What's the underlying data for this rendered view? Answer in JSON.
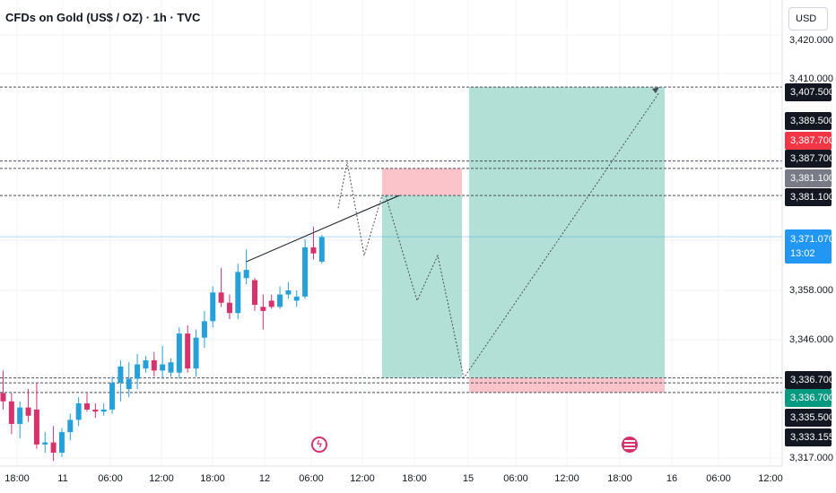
{
  "header": {
    "title": "CFDs on Gold (US$ / OZ) · 1h · TVC",
    "currency": "USD"
  },
  "price_axis": {
    "ticks": [
      "3,420.000",
      "3,410.000",
      "3,358.000",
      "3,346.000",
      "3,317.000"
    ]
  },
  "time_axis": {
    "ticks": [
      "18:00",
      "11",
      "06:00",
      "12:00",
      "18:00",
      "12",
      "06:00",
      "12:00",
      "18:00",
      "15",
      "06:00",
      "12:00",
      "18:00",
      "16",
      "06:00",
      "12:00"
    ]
  },
  "badges": [
    {
      "text": "3,407.500",
      "kind": "dark"
    },
    {
      "text": "3,389.500",
      "kind": "dark"
    },
    {
      "text": "3,387.700",
      "kind": "red"
    },
    {
      "text": "3,387.700",
      "kind": "dark"
    },
    {
      "text": "3,381.100",
      "kind": "gray"
    },
    {
      "text": "3,381.100",
      "kind": "dark"
    },
    {
      "text": "3,371.070",
      "sub": "13:02",
      "kind": "blue"
    },
    {
      "text": "3,336.700",
      "kind": "dark"
    },
    {
      "text": "3,336.700",
      "kind": "green"
    },
    {
      "text": "3,335.500",
      "kind": "dark"
    },
    {
      "text": "3,333.155",
      "kind": "dark"
    }
  ],
  "colors": {
    "up": "#26a0d8",
    "down": "#d6336c",
    "profit_zone": "#b2dfd6",
    "loss_zone": "#fbc4cb",
    "last_price_line": "#2196f3"
  },
  "events": [
    {
      "icon": "flash-icon"
    },
    {
      "icon": "us-flag-icon"
    }
  ],
  "chart_data": {
    "type": "candlestick",
    "title": "CFDs on Gold (US$ / OZ) · 1h · TVC",
    "y_unit": "USD",
    "ylim": [
      3317,
      3424
    ],
    "last_price": 3371.07,
    "candles": [
      {
        "o": 3333.0,
        "h": 3338.5,
        "l": 3329.0,
        "c": 3331.0
      },
      {
        "o": 3331.0,
        "h": 3333.0,
        "l": 3323.0,
        "c": 3325.5
      },
      {
        "o": 3325.5,
        "h": 3331.0,
        "l": 3322.0,
        "c": 3329.5
      },
      {
        "o": 3329.5,
        "h": 3334.0,
        "l": 3326.0,
        "c": 3327.5
      },
      {
        "o": 3329.0,
        "h": 3335.5,
        "l": 3319.5,
        "c": 3320.5
      },
      {
        "o": 3320.5,
        "h": 3323.5,
        "l": 3318.5,
        "c": 3321.0
      },
      {
        "o": 3321.0,
        "h": 3325.0,
        "l": 3316.5,
        "c": 3318.5
      },
      {
        "o": 3318.5,
        "h": 3324.5,
        "l": 3317.5,
        "c": 3323.5
      },
      {
        "o": 3323.5,
        "h": 3328.0,
        "l": 3321.5,
        "c": 3326.5
      },
      {
        "o": 3326.5,
        "h": 3332.0,
        "l": 3325.0,
        "c": 3330.5
      },
      {
        "o": 3330.5,
        "h": 3333.0,
        "l": 3328.5,
        "c": 3329.0
      },
      {
        "o": 3329.0,
        "h": 3330.5,
        "l": 3327.0,
        "c": 3328.5
      },
      {
        "o": 3328.5,
        "h": 3330.5,
        "l": 3327.5,
        "c": 3329.0
      },
      {
        "o": 3329.0,
        "h": 3337.0,
        "l": 3328.0,
        "c": 3335.5
      },
      {
        "o": 3335.5,
        "h": 3341.0,
        "l": 3331.0,
        "c": 3339.5
      },
      {
        "o": 3334.0,
        "h": 3340.5,
        "l": 3332.0,
        "c": 3336.5
      },
      {
        "o": 3336.5,
        "h": 3342.5,
        "l": 3334.0,
        "c": 3340.0
      },
      {
        "o": 3339.0,
        "h": 3342.0,
        "l": 3338.0,
        "c": 3341.0
      },
      {
        "o": 3341.0,
        "h": 3343.0,
        "l": 3337.0,
        "c": 3338.5
      },
      {
        "o": 3338.5,
        "h": 3344.5,
        "l": 3336.5,
        "c": 3340.0
      },
      {
        "o": 3338.0,
        "h": 3341.5,
        "l": 3337.0,
        "c": 3340.5
      },
      {
        "o": 3338.0,
        "h": 3349.0,
        "l": 3336.5,
        "c": 3347.5
      },
      {
        "o": 3347.5,
        "h": 3349.5,
        "l": 3338.0,
        "c": 3339.0
      },
      {
        "o": 3339.0,
        "h": 3348.5,
        "l": 3337.0,
        "c": 3346.5
      },
      {
        "o": 3346.5,
        "h": 3353.0,
        "l": 3344.0,
        "c": 3350.5
      },
      {
        "o": 3350.5,
        "h": 3359.0,
        "l": 3349.0,
        "c": 3357.5
      },
      {
        "o": 3357.5,
        "h": 3363.5,
        "l": 3354.0,
        "c": 3355.0
      },
      {
        "o": 3355.0,
        "h": 3357.0,
        "l": 3351.0,
        "c": 3352.5
      },
      {
        "o": 3352.5,
        "h": 3364.5,
        "l": 3351.0,
        "c": 3362.5
      },
      {
        "o": 3361.0,
        "h": 3368.0,
        "l": 3359.5,
        "c": 3363.0
      },
      {
        "o": 3360.5,
        "h": 3361.0,
        "l": 3353.0,
        "c": 3354.5
      },
      {
        "o": 3354.0,
        "h": 3357.0,
        "l": 3348.5,
        "c": 3353.0
      },
      {
        "o": 3355.5,
        "h": 3357.0,
        "l": 3353.5,
        "c": 3354.0
      },
      {
        "o": 3354.0,
        "h": 3359.0,
        "l": 3353.5,
        "c": 3357.0
      },
      {
        "o": 3357.0,
        "h": 3360.0,
        "l": 3356.0,
        "c": 3358.0
      },
      {
        "o": 3355.5,
        "h": 3358.0,
        "l": 3354.0,
        "c": 3356.5
      },
      {
        "o": 3356.5,
        "h": 3370.5,
        "l": 3356.0,
        "c": 3368.5
      },
      {
        "o": 3368.5,
        "h": 3373.5,
        "l": 3365.5,
        "c": 3367.0
      },
      {
        "o": 3365.0,
        "h": 3371.5,
        "l": 3364.5,
        "c": 3371.0
      }
    ],
    "levels": [
      3407.5,
      3389.5,
      3387.7,
      3381.1,
      3336.7,
      3335.5,
      3333.155
    ],
    "positions": [
      {
        "side": "short",
        "entry": 3381.1,
        "stop": 3387.7,
        "target": 3336.7
      },
      {
        "side": "long",
        "entry": 3336.7,
        "stop": 3333.155,
        "target": 3407.5
      }
    ]
  }
}
